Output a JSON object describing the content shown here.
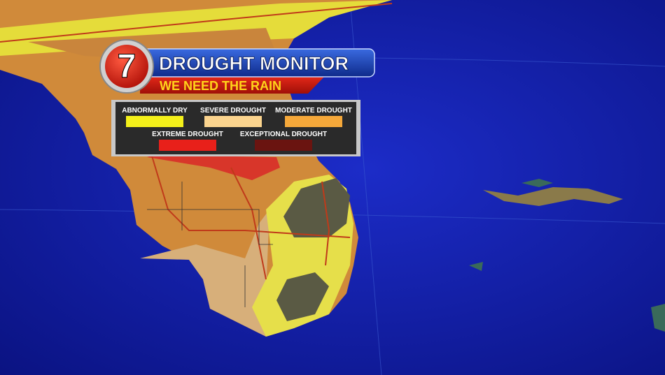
{
  "logo": "7",
  "header": {
    "title": "DROUGHT MONITOR",
    "subtitle": "WE NEED THE RAIN"
  },
  "legend": {
    "items": [
      {
        "label": "ABNORMALLY DRY",
        "color": "#f4f01a"
      },
      {
        "label": "SEVERE DROUGHT",
        "color": "#fbd48e"
      },
      {
        "label": "MODERATE DROUGHT",
        "color": "#f5a83a"
      },
      {
        "label": "EXTREME DROUGHT",
        "color": "#e8201a"
      },
      {
        "label": "EXCEPTIONAL DROUGHT",
        "color": "#6a1410"
      }
    ]
  }
}
